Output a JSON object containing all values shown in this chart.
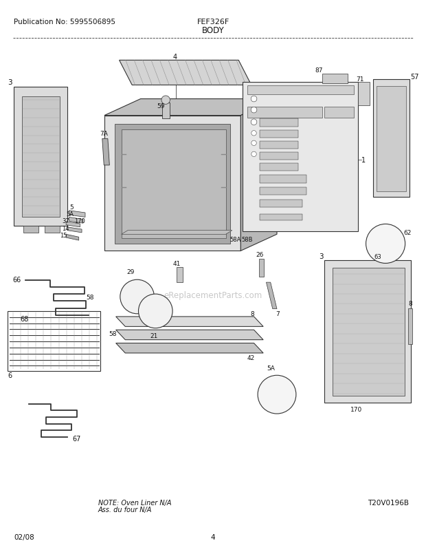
{
  "title": "BODY",
  "pub_no": "Publication No: 5995506895",
  "model": "FEF326F",
  "date": "02/08",
  "page": "4",
  "diagram_id": "T20V0196B",
  "note_line1": "NOTE: Oven Liner N/A",
  "note_line2": "Ass. du four N/A",
  "watermark": "eReplacementParts.com",
  "bg_color": "#ffffff",
  "line_color": "#333333",
  "text_color": "#111111",
  "watermark_color": "#c8c8c8",
  "fig_w": 6.2,
  "fig_h": 8.03,
  "dpi": 100
}
